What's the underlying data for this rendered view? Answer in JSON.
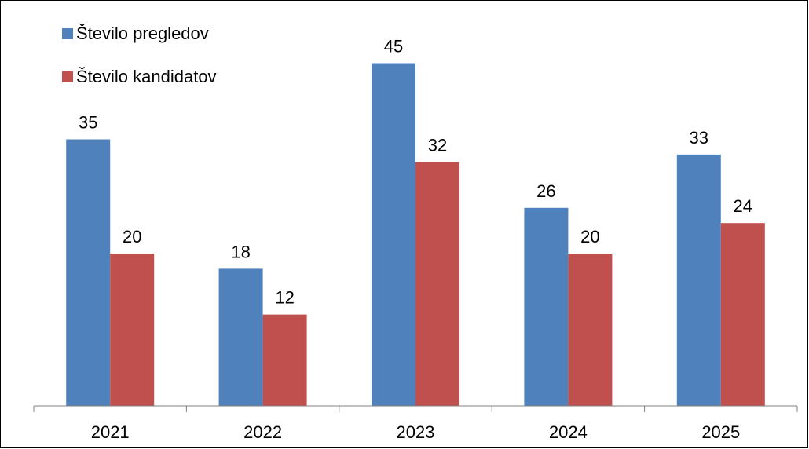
{
  "chart_data": {
    "type": "bar",
    "title": "",
    "xlabel": "",
    "ylabel": "",
    "categories": [
      "2021",
      "2022",
      "2023",
      "2024",
      "2025"
    ],
    "series": [
      {
        "name": "Število pregledov",
        "values": [
          35,
          18,
          45,
          26,
          33
        ],
        "color": "#4F81BD"
      },
      {
        "name": "Število kandidatov",
        "values": [
          20,
          12,
          32,
          20,
          24
        ],
        "color": "#C0504D"
      }
    ],
    "ylim": [
      0,
      50
    ],
    "grid": false,
    "legend_position": "top-left",
    "data_labels": true,
    "axis_color": "#808080"
  }
}
